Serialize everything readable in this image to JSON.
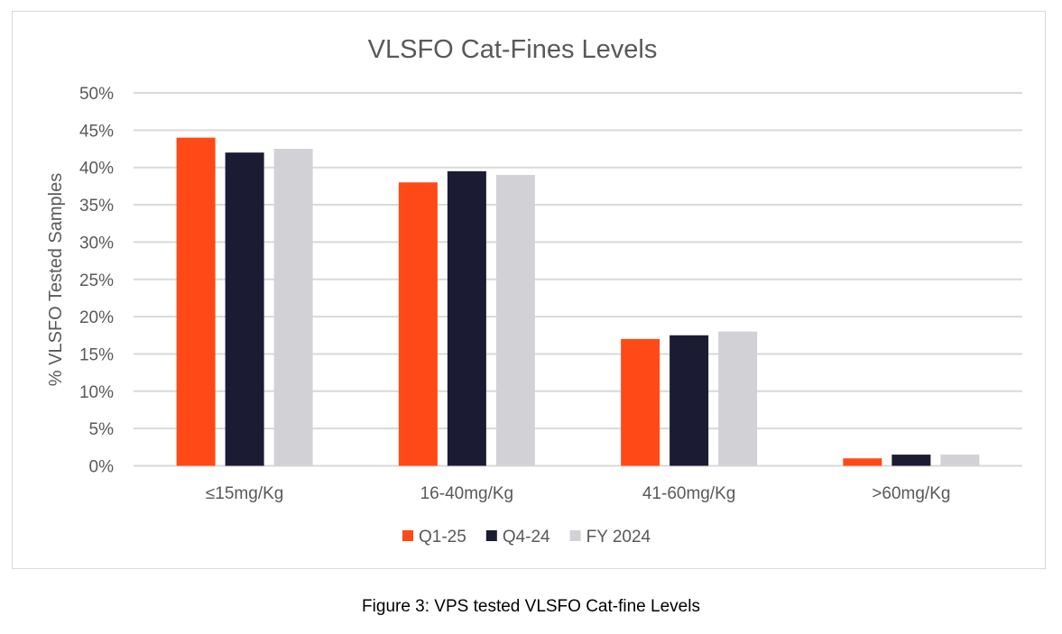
{
  "chart_data": {
    "type": "bar",
    "title": "VLSFO Cat-Fines Levels",
    "xlabel": "",
    "ylabel": "% VLSFO Tested Samples",
    "ylim": [
      0,
      50
    ],
    "yticks": [
      "0%",
      "5%",
      "10%",
      "15%",
      "20%",
      "25%",
      "30%",
      "35%",
      "40%",
      "45%",
      "50%"
    ],
    "grid": true,
    "legend_position": "bottom",
    "categories": [
      "≤15mg/Kg",
      "16-40mg/Kg",
      "41-60mg/Kg",
      ">60mg/Kg"
    ],
    "series": [
      {
        "name": "Q1-25",
        "color": "#ff4917",
        "values": [
          44,
          38,
          17,
          1
        ]
      },
      {
        "name": "Q4-24",
        "color": "#1b1c33",
        "values": [
          42,
          39.5,
          17.5,
          1.5
        ]
      },
      {
        "name": "FY 2024",
        "color": "#d2d2d6",
        "values": [
          42.5,
          39,
          18,
          1.5
        ]
      }
    ]
  },
  "caption": "Figure 3: VPS tested VLSFO Cat-fine Levels"
}
